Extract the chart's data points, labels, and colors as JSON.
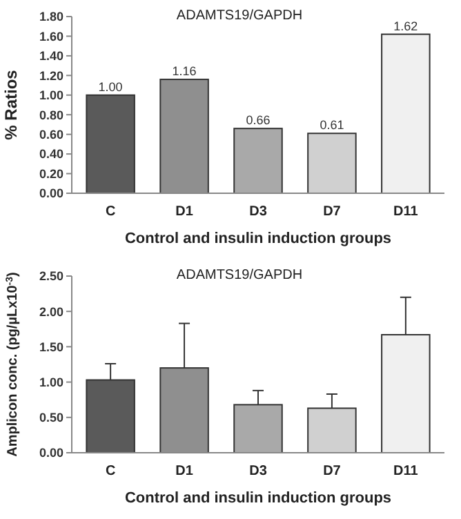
{
  "chart_data": [
    {
      "type": "bar",
      "title": "ADAMTS19/GAPDH",
      "xlabel": "Control and insulin induction groups",
      "ylabel": "% Ratios",
      "categories": [
        "C",
        "D1",
        "D3",
        "D7",
        "D11"
      ],
      "values": [
        1.0,
        1.16,
        0.66,
        0.61,
        1.62
      ],
      "colors": [
        "#5a5a5a",
        "#8f8f8f",
        "#a9a9a9",
        "#d0d0d0",
        "#f0f0f0"
      ],
      "value_labels": [
        "1.00",
        "1.16",
        "0.66",
        "0.61",
        "1.62"
      ],
      "ylim": [
        0,
        1.8
      ],
      "yticks": [
        {
          "value": 0,
          "label": "0.00"
        },
        {
          "value": 0.2,
          "label": "0.20"
        },
        {
          "value": 0.4,
          "label": "0.40"
        },
        {
          "value": 0.6,
          "label": "0.60"
        },
        {
          "value": 0.8,
          "label": "0.80"
        },
        {
          "value": 1,
          "label": "1.00"
        },
        {
          "value": 1.2,
          "label": "1.20"
        },
        {
          "value": 1.4,
          "label": "1.40"
        },
        {
          "value": 1.6,
          "label": "1.60"
        },
        {
          "value": 1.8,
          "label": "1.80"
        }
      ]
    },
    {
      "type": "bar",
      "title": "ADAMTS19/GAPDH",
      "xlabel": "Control and insulin induction groups",
      "ylabel": "Amplicon conc. (pg/µLx10$^{-3}$)",
      "categories": [
        "C",
        "D1",
        "D3",
        "D7",
        "D11"
      ],
      "values": [
        1.03,
        1.2,
        0.68,
        0.63,
        1.67
      ],
      "errors": [
        [
          1.03,
          1.26
        ],
        [
          1.2,
          1.83
        ],
        [
          0.68,
          0.88
        ],
        [
          0.63,
          0.83
        ],
        [
          1.67,
          2.2
        ]
      ],
      "colors": [
        "#5a5a5a",
        "#8f8f8f",
        "#a9a9a9",
        "#d0d0d0",
        "#f0f0f0"
      ],
      "ylim": [
        0,
        2.5
      ],
      "yticks": [
        {
          "value": 0,
          "label": "0.00"
        },
        {
          "value": 0.5,
          "label": "0.50"
        },
        {
          "value": 1,
          "label": "1.00"
        },
        {
          "value": 1.5,
          "label": "1.50"
        },
        {
          "value": 2,
          "label": "2.00"
        },
        {
          "value": 2.5,
          "label": "2.50"
        }
      ]
    }
  ]
}
